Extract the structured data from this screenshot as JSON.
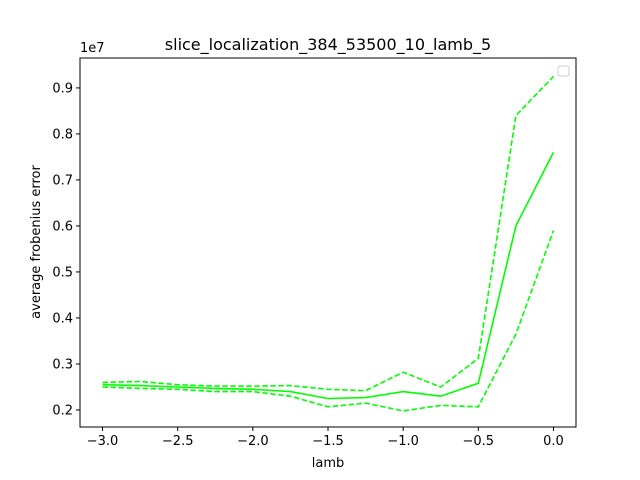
{
  "chart_data": {
    "type": "line",
    "title": "slice_localization_384_53500_10_lamb_5",
    "xlabel": "lamb",
    "ylabel": "average frobenius error",
    "y_offset_label": "1e7",
    "x_ticks": [
      -3.0,
      -2.5,
      -2.0,
      -1.5,
      -1.0,
      -0.5,
      0.0
    ],
    "x_tick_labels": [
      "−3.0",
      "−2.5",
      "−2.0",
      "−1.5",
      "−1.0",
      "−0.5",
      "0.0"
    ],
    "y_ticks": [
      0.2,
      0.3,
      0.4,
      0.5,
      0.6,
      0.7,
      0.8,
      0.9
    ],
    "y_tick_labels": [
      "0.2",
      "0.3",
      "0.4",
      "0.5",
      "0.6",
      "0.7",
      "0.8",
      "0.9"
    ],
    "xlim": [
      -3.15,
      0.15
    ],
    "ylim": [
      0.163,
      0.965
    ],
    "grid": false,
    "legend": {
      "placement": "top-right",
      "entries": []
    },
    "x": [
      -3.0,
      -2.75,
      -2.5,
      -2.25,
      -2.0,
      -1.75,
      -1.5,
      -1.25,
      -1.0,
      -0.75,
      -0.5,
      -0.25,
      0.0
    ],
    "series": [
      {
        "style": "solid",
        "color": "#00ff00",
        "values": [
          0.255,
          0.253,
          0.25,
          0.247,
          0.245,
          0.24,
          0.225,
          0.227,
          0.24,
          0.23,
          0.258,
          0.6,
          0.76
        ]
      },
      {
        "style": "dashed",
        "color": "#00ff00",
        "values": [
          0.26,
          0.262,
          0.255,
          0.252,
          0.252,
          0.253,
          0.245,
          0.242,
          0.282,
          0.25,
          0.312,
          0.84,
          0.925
        ]
      },
      {
        "style": "dashed",
        "color": "#00ff00",
        "values": [
          0.25,
          0.247,
          0.245,
          0.24,
          0.24,
          0.23,
          0.207,
          0.215,
          0.198,
          0.21,
          0.207,
          0.365,
          0.59
        ]
      }
    ]
  }
}
